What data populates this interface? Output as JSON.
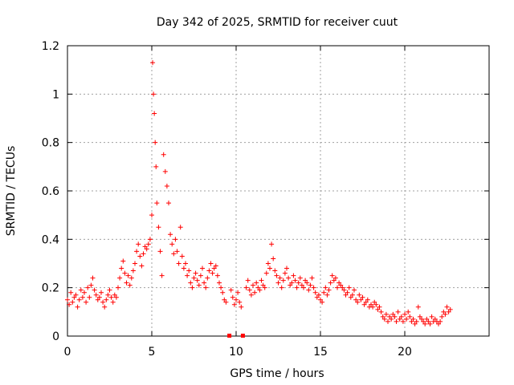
{
  "chart_data": {
    "type": "scatter",
    "title": "Day 342 of 2025, SRMTID for receiver cuut",
    "xlabel": "GPS time / hours",
    "ylabel": "SRMTID / TECUs",
    "xlim": [
      0,
      25
    ],
    "ylim": [
      0,
      1.2
    ],
    "xticks": [
      0,
      5,
      10,
      15,
      20
    ],
    "yticks": [
      0,
      0.2,
      0.4,
      0.6,
      0.8,
      1,
      1.2
    ],
    "xtick_labels": [
      "0",
      "5",
      "10",
      "15",
      "20"
    ],
    "ytick_labels": [
      "0",
      "0.2",
      "0.4",
      "0.6",
      "0.8",
      "1",
      "1.2"
    ],
    "grid": true,
    "marker": "+",
    "marker_color": "#ff0000",
    "series": [
      {
        "name": "SRMTID",
        "x": [
          0.0,
          0.1,
          0.2,
          0.3,
          0.4,
          0.5,
          0.6,
          0.7,
          0.8,
          0.9,
          1.0,
          1.1,
          1.2,
          1.3,
          1.4,
          1.5,
          1.6,
          1.7,
          1.8,
          1.9,
          2.0,
          2.1,
          2.2,
          2.3,
          2.4,
          2.5,
          2.6,
          2.7,
          2.8,
          2.9,
          3.0,
          3.1,
          3.2,
          3.3,
          3.4,
          3.5,
          3.6,
          3.7,
          3.8,
          3.9,
          4.0,
          4.1,
          4.2,
          4.3,
          4.4,
          4.5,
          4.6,
          4.7,
          4.8,
          4.9,
          5.0,
          5.05,
          5.1,
          5.15,
          5.2,
          5.25,
          5.3,
          5.4,
          5.5,
          5.6,
          5.7,
          5.8,
          5.9,
          6.0,
          6.1,
          6.2,
          6.3,
          6.4,
          6.5,
          6.6,
          6.7,
          6.8,
          6.9,
          7.0,
          7.1,
          7.2,
          7.3,
          7.4,
          7.5,
          7.6,
          7.7,
          7.8,
          7.9,
          8.0,
          8.1,
          8.2,
          8.3,
          8.4,
          8.5,
          8.6,
          8.7,
          8.8,
          8.9,
          9.0,
          9.1,
          9.2,
          9.3,
          9.4,
          9.7,
          9.8,
          9.9,
          10.0,
          10.1,
          10.2,
          10.3,
          10.6,
          10.7,
          10.8,
          10.9,
          11.0,
          11.1,
          11.2,
          11.3,
          11.4,
          11.5,
          11.6,
          11.7,
          11.8,
          11.9,
          12.0,
          12.1,
          12.2,
          12.3,
          12.4,
          12.5,
          12.6,
          12.7,
          12.8,
          12.9,
          13.0,
          13.1,
          13.2,
          13.3,
          13.4,
          13.5,
          13.6,
          13.7,
          13.8,
          13.9,
          14.0,
          14.1,
          14.2,
          14.3,
          14.4,
          14.5,
          14.6,
          14.7,
          14.8,
          14.9,
          15.0,
          15.1,
          15.2,
          15.3,
          15.4,
          15.5,
          15.6,
          15.7,
          15.8,
          15.9,
          16.0,
          16.1,
          16.2,
          16.3,
          16.4,
          16.5,
          16.6,
          16.7,
          16.8,
          16.9,
          17.0,
          17.1,
          17.2,
          17.3,
          17.4,
          17.5,
          17.6,
          17.7,
          17.8,
          17.9,
          18.0,
          18.1,
          18.2,
          18.3,
          18.4,
          18.5,
          18.6,
          18.7,
          18.8,
          18.9,
          19.0,
          19.1,
          19.2,
          19.3,
          19.4,
          19.5,
          19.6,
          19.7,
          19.8,
          19.9,
          20.0,
          20.1,
          20.2,
          20.3,
          20.4,
          20.5,
          20.6,
          20.7,
          20.8,
          20.9,
          21.0,
          21.1,
          21.2,
          21.3,
          21.4,
          21.5,
          21.6,
          21.7,
          21.8,
          21.9,
          22.0,
          22.1,
          22.2,
          22.3,
          22.4,
          22.5,
          22.6,
          22.7
        ],
        "y": [
          0.15,
          0.13,
          0.18,
          0.14,
          0.16,
          0.17,
          0.12,
          0.15,
          0.19,
          0.16,
          0.18,
          0.14,
          0.2,
          0.16,
          0.21,
          0.24,
          0.19,
          0.17,
          0.15,
          0.16,
          0.18,
          0.14,
          0.12,
          0.15,
          0.17,
          0.19,
          0.16,
          0.14,
          0.17,
          0.16,
          0.2,
          0.24,
          0.28,
          0.31,
          0.26,
          0.22,
          0.25,
          0.21,
          0.24,
          0.27,
          0.3,
          0.35,
          0.38,
          0.33,
          0.29,
          0.34,
          0.37,
          0.36,
          0.38,
          0.4,
          0.5,
          1.13,
          1.0,
          0.92,
          0.8,
          0.7,
          0.55,
          0.45,
          0.35,
          0.25,
          0.75,
          0.68,
          0.62,
          0.55,
          0.42,
          0.38,
          0.34,
          0.4,
          0.35,
          0.3,
          0.45,
          0.33,
          0.28,
          0.3,
          0.25,
          0.27,
          0.22,
          0.2,
          0.24,
          0.26,
          0.23,
          0.21,
          0.25,
          0.28,
          0.22,
          0.2,
          0.24,
          0.27,
          0.3,
          0.26,
          0.28,
          0.29,
          0.25,
          0.22,
          0.2,
          0.18,
          0.15,
          0.14,
          0.19,
          0.16,
          0.13,
          0.15,
          0.18,
          0.14,
          0.12,
          0.2,
          0.23,
          0.19,
          0.17,
          0.21,
          0.18,
          0.22,
          0.2,
          0.19,
          0.23,
          0.21,
          0.2,
          0.26,
          0.3,
          0.28,
          0.38,
          0.32,
          0.27,
          0.25,
          0.22,
          0.24,
          0.2,
          0.23,
          0.26,
          0.28,
          0.24,
          0.21,
          0.22,
          0.25,
          0.23,
          0.2,
          0.22,
          0.24,
          0.21,
          0.2,
          0.23,
          0.22,
          0.19,
          0.21,
          0.24,
          0.2,
          0.18,
          0.16,
          0.17,
          0.15,
          0.14,
          0.18,
          0.2,
          0.17,
          0.19,
          0.22,
          0.25,
          0.23,
          0.24,
          0.2,
          0.22,
          0.21,
          0.2,
          0.19,
          0.17,
          0.18,
          0.2,
          0.16,
          0.17,
          0.19,
          0.15,
          0.14,
          0.17,
          0.15,
          0.16,
          0.13,
          0.14,
          0.15,
          0.12,
          0.13,
          0.12,
          0.14,
          0.13,
          0.11,
          0.12,
          0.1,
          0.08,
          0.07,
          0.09,
          0.06,
          0.08,
          0.07,
          0.09,
          0.08,
          0.06,
          0.1,
          0.07,
          0.08,
          0.06,
          0.09,
          0.07,
          0.1,
          0.08,
          0.06,
          0.07,
          0.05,
          0.06,
          0.12,
          0.08,
          0.07,
          0.06,
          0.05,
          0.07,
          0.06,
          0.05,
          0.08,
          0.06,
          0.07,
          0.06,
          0.05,
          0.06,
          0.08,
          0.1,
          0.09,
          0.12,
          0.1,
          0.11
        ]
      }
    ],
    "gap_markers": [
      9.6,
      10.4
    ]
  }
}
